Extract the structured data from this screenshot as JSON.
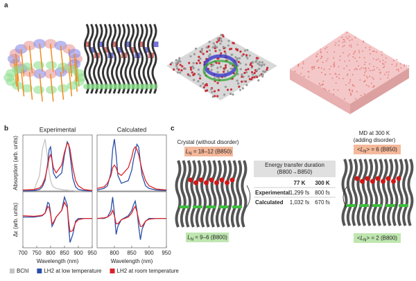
{
  "panel_labels": [
    "a",
    "b",
    "c"
  ],
  "column_titles": [
    "Experimental",
    "Calculated"
  ],
  "legend": [
    {
      "name": "BChl",
      "color": "#c4c4c4"
    },
    {
      "name": "LH2 at low temperature",
      "color": "#2a4fa8"
    },
    {
      "name": "LH2 at room temperature",
      "color": "#d9232a"
    }
  ],
  "chart_data": [
    {
      "type": "line",
      "ylabel": "Absorption (arb. units)",
      "x": [
        700,
        740,
        760,
        770,
        780,
        790,
        795,
        800,
        805,
        810,
        820,
        840,
        850,
        860,
        865,
        870,
        880,
        890,
        900,
        920,
        950
      ],
      "xlim": [
        700,
        950
      ],
      "ylim": [
        0,
        1.08
      ],
      "series": [
        {
          "color": "#c4c4c4",
          "values": [
            0,
            0.02,
            0.3,
            0.8,
            1.0,
            0.6,
            0.35,
            0.2,
            0.12,
            0.08,
            0.05,
            0.03,
            0.02,
            0.02,
            0.01,
            0.01,
            0.01,
            0,
            0,
            0,
            0
          ]
        },
        {
          "color": "#2a4fa8",
          "values": [
            0,
            0.01,
            0.03,
            0.08,
            0.2,
            0.55,
            0.8,
            0.85,
            0.6,
            0.35,
            0.25,
            0.35,
            0.7,
            0.95,
            0.9,
            0.7,
            0.25,
            0.08,
            0.03,
            0.01,
            0
          ]
        },
        {
          "color": "#d9232a",
          "values": [
            0.02,
            0.03,
            0.06,
            0.12,
            0.25,
            0.5,
            0.65,
            0.7,
            0.6,
            0.45,
            0.35,
            0.5,
            0.75,
            0.92,
            0.9,
            0.8,
            0.45,
            0.2,
            0.1,
            0.03,
            0.01
          ]
        }
      ]
    },
    {
      "type": "line",
      "x": [
        750,
        770,
        780,
        790,
        795,
        800,
        805,
        810,
        820,
        840,
        850,
        855,
        860,
        865,
        870,
        875,
        880,
        890,
        900,
        920,
        950
      ],
      "xlim": [
        750,
        950
      ],
      "ylim": [
        0,
        1.08
      ],
      "series": [
        {
          "color": "#2a4fa8",
          "values": [
            0.02,
            0.05,
            0.1,
            0.35,
            0.8,
            1.0,
            0.7,
            0.3,
            0.15,
            0.2,
            0.4,
            0.6,
            0.75,
            0.9,
            0.85,
            0.55,
            0.3,
            0.1,
            0.05,
            0.02,
            0.01
          ]
        },
        {
          "color": "#d9232a",
          "values": [
            0.05,
            0.08,
            0.15,
            0.3,
            0.45,
            0.5,
            0.45,
            0.35,
            0.3,
            0.45,
            0.65,
            0.8,
            0.85,
            0.8,
            0.7,
            0.55,
            0.4,
            0.2,
            0.1,
            0.04,
            0.02
          ]
        }
      ]
    },
    {
      "type": "line",
      "ylabel": "Δε (arb. units)",
      "xlabel": "Wavelength (nm)",
      "x": [
        700,
        740,
        760,
        770,
        780,
        790,
        795,
        800,
        805,
        810,
        820,
        840,
        850,
        860,
        865,
        870,
        880,
        890,
        900,
        920,
        950
      ],
      "xlim": [
        700,
        950
      ],
      "xticks": [
        700,
        750,
        800,
        850,
        900,
        950
      ],
      "ylim": [
        -1.1,
        1.0
      ],
      "series": [
        {
          "color": "#2a4fa8",
          "values": [
            0.05,
            0.05,
            0.08,
            0.1,
            0.2,
            0.6,
            0.55,
            0.2,
            -0.3,
            -0.2,
            0.05,
            0.3,
            0.8,
            0.5,
            -0.3,
            -0.9,
            -0.6,
            -0.1,
            0,
            0,
            0
          ]
        },
        {
          "color": "#d9232a",
          "values": [
            0.1,
            0.08,
            0.1,
            0.12,
            0.2,
            0.45,
            0.4,
            0.15,
            -0.2,
            -0.15,
            0.05,
            0.3,
            0.6,
            0.4,
            -0.1,
            -0.5,
            -0.45,
            -0.15,
            -0.05,
            0,
            0
          ]
        }
      ]
    },
    {
      "type": "line",
      "xlabel": "Wavelength (nm)",
      "x": [
        750,
        770,
        780,
        790,
        795,
        800,
        805,
        810,
        820,
        840,
        850,
        855,
        860,
        865,
        870,
        875,
        880,
        890,
        900,
        920,
        950
      ],
      "xlim": [
        750,
        950
      ],
      "xticks": [
        800,
        850,
        900,
        950
      ],
      "ylim": [
        -1.1,
        1.0
      ],
      "series": [
        {
          "color": "#2a4fa8",
          "values": [
            0,
            0,
            0.05,
            0.3,
            0.8,
            0.2,
            -0.6,
            -0.3,
            -0.05,
            0.1,
            0.3,
            0.5,
            0.65,
            0.3,
            -0.3,
            -0.8,
            -0.4,
            -0.1,
            0,
            0,
            0
          ]
        },
        {
          "color": "#d9232a",
          "values": [
            0,
            0.02,
            0.05,
            0.15,
            0.3,
            0.1,
            -0.2,
            -0.2,
            -0.05,
            0.05,
            0.2,
            0.35,
            0.45,
            0.25,
            -0.05,
            -0.3,
            -0.3,
            -0.1,
            -0.03,
            0,
            0
          ]
        }
      ]
    }
  ],
  "panel_c": {
    "left_title": "Crystal (without disorder)",
    "left_top": {
      "symbol": "L",
      "sub": "N",
      "rest": " = 18–12 (B850)"
    },
    "left_bottom": {
      "symbol": "L",
      "sub": "N",
      "rest": " = 9–6 (B800)"
    },
    "right_title": [
      "MD at 300 K",
      "(adding disorder)"
    ],
    "right_top": {
      "pre": "<",
      "symbol": "L",
      "sub": "N",
      "rest": "> = 6 (B850)"
    },
    "right_bottom": {
      "pre": "<",
      "symbol": "L",
      "sub": "N",
      "rest": "> = 2 (B800)"
    },
    "table": {
      "title": [
        "Energy transfer duration",
        "(B800→B850)"
      ],
      "columns": [
        "77 K",
        "300 K"
      ],
      "rows": [
        [
          "Experimental",
          "1,299 fs",
          "800 fs"
        ],
        [
          "Calculated",
          "1,032 fs",
          "670 fs"
        ]
      ]
    }
  }
}
